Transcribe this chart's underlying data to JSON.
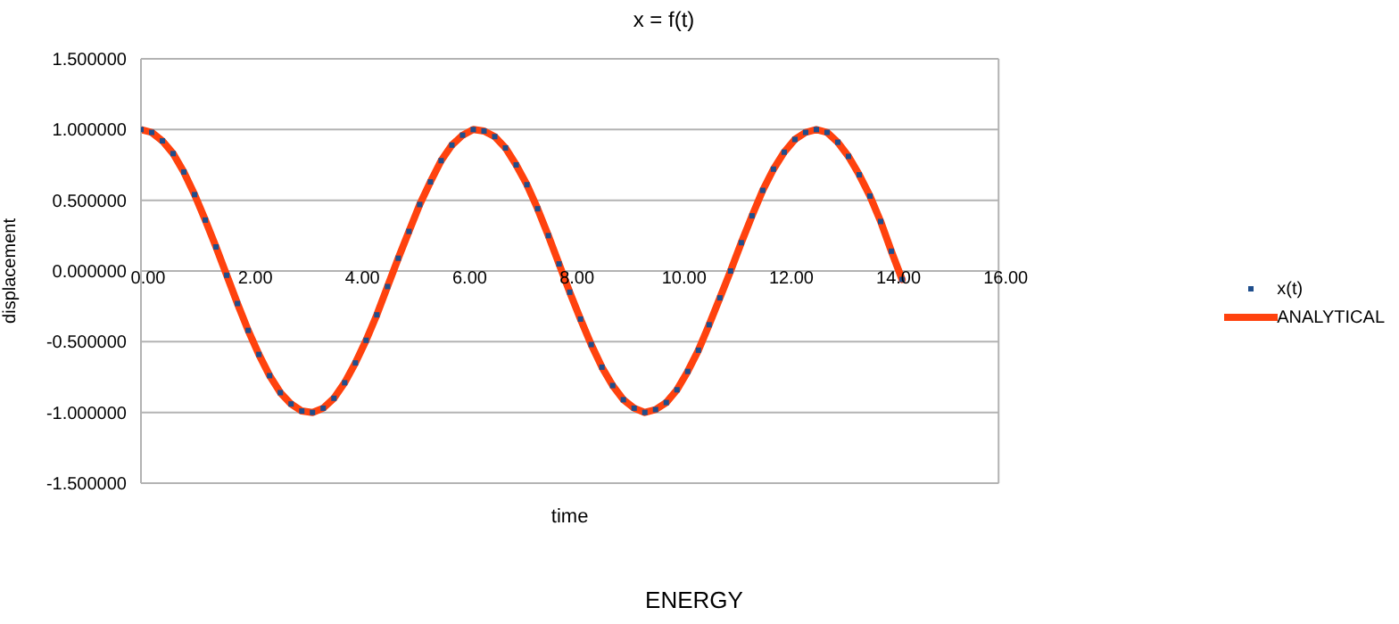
{
  "chart_data": {
    "type": "line",
    "title": "x = f(t)",
    "xlabel": "time",
    "ylabel": "displacement",
    "annotations": [
      "ENERGY"
    ],
    "x": [
      0,
      0.2,
      0.4,
      0.6,
      0.8,
      1.0,
      1.2,
      1.4,
      1.6,
      1.8,
      2.0,
      2.2,
      2.4,
      2.6,
      2.8,
      3.0,
      3.2,
      3.4,
      3.6,
      3.8,
      4.0,
      4.2,
      4.4,
      4.6,
      4.8,
      5.0,
      5.2,
      5.4,
      5.6,
      5.8,
      6.0,
      6.2,
      6.4,
      6.6,
      6.8,
      7.0,
      7.2,
      7.4,
      7.6,
      7.8,
      8.0,
      8.2,
      8.4,
      8.6,
      8.8,
      9.0,
      9.2,
      9.4,
      9.6,
      9.8,
      10.0,
      10.2,
      10.4,
      10.6,
      10.8,
      11.0,
      11.2,
      11.4,
      11.6,
      11.8,
      12.0,
      12.2,
      12.4,
      12.6,
      12.8,
      13.0,
      13.2,
      13.4,
      13.6,
      13.8,
      14.0,
      14.2
    ],
    "series": [
      {
        "name": "x(t)",
        "type": "scatter",
        "marker": "square",
        "color": "#1f4e8c",
        "values": [
          1.0,
          0.98,
          0.92,
          0.83,
          0.7,
          0.54,
          0.36,
          0.17,
          -0.03,
          -0.23,
          -0.42,
          -0.59,
          -0.74,
          -0.86,
          -0.94,
          -0.99,
          -1.0,
          -0.97,
          -0.9,
          -0.79,
          -0.65,
          -0.49,
          -0.31,
          -0.11,
          0.09,
          0.28,
          0.47,
          0.63,
          0.78,
          0.89,
          0.96,
          1.0,
          0.99,
          0.95,
          0.87,
          0.75,
          0.61,
          0.44,
          0.25,
          0.05,
          -0.15,
          -0.34,
          -0.52,
          -0.68,
          -0.81,
          -0.91,
          -0.97,
          -1.0,
          -0.98,
          -0.93,
          -0.84,
          -0.71,
          -0.56,
          -0.38,
          -0.19,
          0.0,
          0.2,
          0.39,
          0.57,
          0.72,
          0.84,
          0.93,
          0.98,
          1.0,
          0.98,
          0.91,
          0.81,
          0.68,
          0.53,
          0.35,
          0.14,
          -0.06
        ]
      },
      {
        "name": "ANALYTICAL",
        "color": "#ff420e",
        "values": [
          1.0,
          0.98,
          0.92,
          0.83,
          0.7,
          0.54,
          0.36,
          0.17,
          -0.03,
          -0.23,
          -0.42,
          -0.59,
          -0.74,
          -0.86,
          -0.94,
          -0.99,
          -1.0,
          -0.97,
          -0.9,
          -0.79,
          -0.65,
          -0.49,
          -0.31,
          -0.11,
          0.09,
          0.28,
          0.47,
          0.63,
          0.78,
          0.89,
          0.96,
          1.0,
          0.99,
          0.95,
          0.87,
          0.75,
          0.61,
          0.44,
          0.25,
          0.05,
          -0.15,
          -0.34,
          -0.52,
          -0.68,
          -0.81,
          -0.91,
          -0.97,
          -1.0,
          -0.98,
          -0.93,
          -0.84,
          -0.71,
          -0.56,
          -0.38,
          -0.19,
          0.0,
          0.2,
          0.39,
          0.57,
          0.72,
          0.84,
          0.93,
          0.98,
          1.0,
          0.98,
          0.91,
          0.81,
          0.68,
          0.53,
          0.35,
          0.14,
          -0.06
        ]
      }
    ],
    "xlim": [
      0,
      16
    ],
    "xticks": [
      {
        "value": 0,
        "label": "0.00"
      },
      {
        "value": 2,
        "label": "2.00"
      },
      {
        "value": 4,
        "label": "4.00"
      },
      {
        "value": 6,
        "label": "6.00"
      },
      {
        "value": 8,
        "label": "8.00"
      },
      {
        "value": 10,
        "label": "10.00"
      },
      {
        "value": 12,
        "label": "12.00"
      },
      {
        "value": 14,
        "label": "14.00"
      },
      {
        "value": 16,
        "label": "16.00"
      }
    ],
    "ylim": [
      -1.5,
      1.5
    ],
    "yticks": [
      {
        "value": -1.5,
        "label": "-1.500000"
      },
      {
        "value": -1,
        "label": "-1.000000"
      },
      {
        "value": -0.5,
        "label": "-0.500000"
      },
      {
        "value": 0,
        "label": "0.000000"
      },
      {
        "value": 0.5,
        "label": "0.500000"
      },
      {
        "value": 1,
        "label": "1.000000"
      },
      {
        "value": 1.5,
        "label": "1.500000"
      }
    ],
    "grid": "y",
    "legend": "right"
  }
}
